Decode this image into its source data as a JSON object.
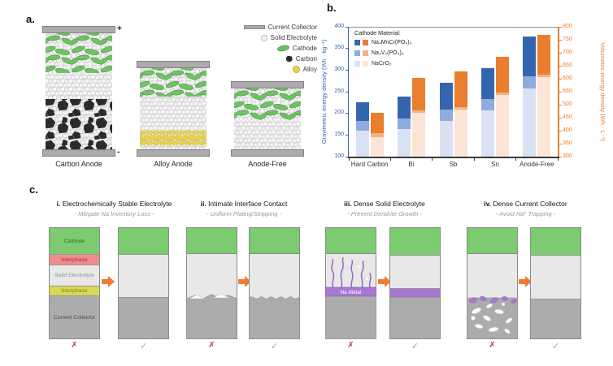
{
  "panel_a": {
    "label": "a.",
    "plus": "+",
    "minus": "-",
    "anodes": [
      {
        "name": "Carbon Anode"
      },
      {
        "name": "Alloy Anode"
      },
      {
        "name": "Anode-Free"
      }
    ],
    "legend": [
      {
        "name": "Current Collector",
        "icon": "current-collector-bar",
        "color": "#A9A9A9"
      },
      {
        "name": "Solid Electrolyte",
        "icon": "electrolyte-sphere",
        "color": "#F2F2F2"
      },
      {
        "name": "Cathode",
        "icon": "cathode-flake",
        "color": "#6FC264"
      },
      {
        "name": "Carbon",
        "icon": "carbon-particle",
        "color": "#2B2B2B"
      },
      {
        "name": "Alloy",
        "icon": "alloy-sphere",
        "color": "#E8D24A"
      }
    ]
  },
  "panel_b": {
    "label": "b."
  },
  "chart_data": {
    "type": "bar",
    "categories": [
      "Hard Carbon",
      "Bi",
      "Sb",
      "Sn",
      "Anode-Free"
    ],
    "legend_title": "Cathode Material:",
    "legend_position": "top-left-inside",
    "grid": false,
    "left_axis": {
      "label": "Gravimetric energy density (Wh · kg⁻¹)",
      "min": 100,
      "max": 400,
      "tick_step": 50,
      "color": "#3565AE"
    },
    "right_axis": {
      "label": "Volumetric energy density (Wh · L⁻¹)",
      "min": 300,
      "max": 800,
      "tick_step": 50,
      "color": "#E87E2E"
    },
    "series": [
      {
        "name": "Na₄MnCr(PO₄)₃",
        "blue": "#3565AE",
        "orange": "#E87E2E",
        "gravimetric_Wh_kg": [
          226,
          238,
          270,
          305,
          378
        ],
        "volumetric_Wh_L": [
          470,
          602,
          628,
          685,
          770
        ]
      },
      {
        "name": "Na₃V₂(PO₄)₃",
        "blue": "#8FAADC",
        "orange": "#F4B183",
        "gravimetric_Wh_kg": [
          183,
          188,
          208,
          233,
          286
        ],
        "volumetric_Wh_L": [
          390,
          477,
          492,
          548,
          617
        ]
      },
      {
        "name": "NaCrO₂",
        "blue": "#D9E2F2",
        "orange": "#FBE5D6",
        "gravimetric_Wh_kg": [
          160,
          163,
          183,
          207,
          257
        ],
        "volumetric_Wh_L": [
          375,
          468,
          480,
          538,
          607
        ]
      }
    ]
  },
  "panel_c": {
    "label": "c.",
    "x_mark": "✗",
    "check_mark": "✓",
    "arrow_color": "#ED7D31",
    "items": [
      {
        "numeral": "i.",
        "title": "Electrochemically Stable Electrolyte",
        "subtitle": "- Mitigate Na Inventory Loss -",
        "layers": [
          "Cathode",
          "Interphase",
          "Solid Electrolyte",
          "Interphase",
          "Current Collector"
        ]
      },
      {
        "numeral": "ii.",
        "title": "Intimate Interface Contact",
        "subtitle": "- Uniform Plating/Stripping -"
      },
      {
        "numeral": "iii.",
        "title": "Dense Solid Electrolyte",
        "subtitle": "- Prevent Dendrite Growth -",
        "na_metal_label": "Na Metal"
      },
      {
        "numeral": "iv.",
        "title": "Dense Current Collector",
        "subtitle": "- Avoid Na⁰ Trapping -"
      }
    ],
    "colors": {
      "cathode_green": "#7CCB70",
      "interphase_red": "#F18C8C",
      "interphase_yellow": "#D8D852",
      "solid_electrolyte_gray": "#E8E8E8",
      "current_collector_gray": "#ACACAC",
      "na_metal_purple": "#A678D2"
    }
  }
}
